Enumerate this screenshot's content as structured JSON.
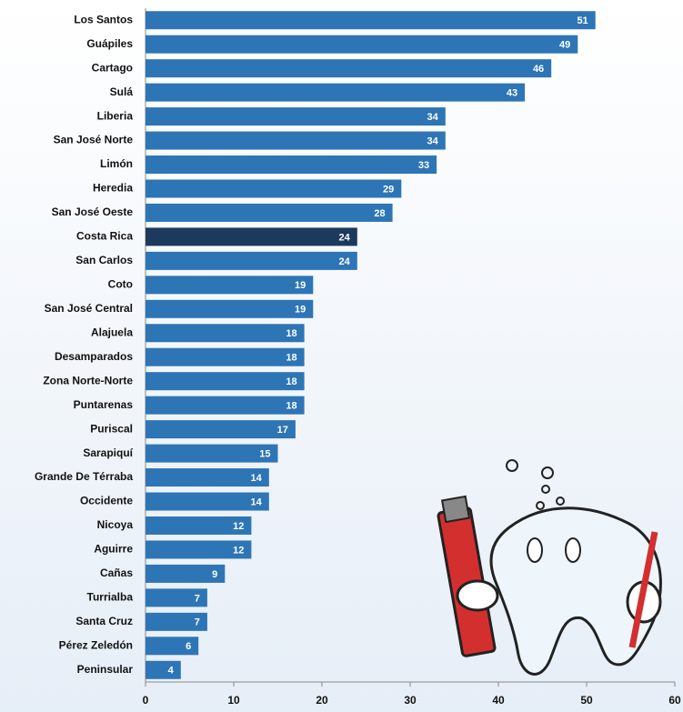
{
  "chart_data": {
    "type": "bar",
    "orientation": "horizontal",
    "categories": [
      "Los Santos",
      "Guápiles",
      "Cartago",
      "Sulá",
      "Liberia",
      "San José Norte",
      "Limón",
      "Heredia",
      "San José Oeste",
      "Costa Rica",
      "San Carlos",
      "Coto",
      "San José Central",
      "Alajuela",
      "Desamparados",
      "Zona Norte-Norte",
      "Puntarenas",
      "Puriscal",
      "Sarapiquí",
      "Grande De Térraba",
      "Occidente",
      "Nicoya",
      "Aguirre",
      "Cañas",
      "Turrialba",
      "Santa Cruz",
      "Pérez Zeledón",
      "Peninsular"
    ],
    "values": [
      51,
      49,
      46,
      43,
      34,
      34,
      33,
      29,
      28,
      24,
      24,
      19,
      19,
      18,
      18,
      18,
      18,
      17,
      15,
      14,
      14,
      12,
      12,
      9,
      7,
      7,
      6,
      4
    ],
    "colors": [
      "#2e75b6",
      "#2e75b6",
      "#2e75b6",
      "#2e75b6",
      "#2e75b6",
      "#2e75b6",
      "#2e75b6",
      "#2e75b6",
      "#2e75b6",
      "#1c3a5e",
      "#2e75b6",
      "#2e75b6",
      "#2e75b6",
      "#2e75b6",
      "#2e75b6",
      "#2e75b6",
      "#2e75b6",
      "#2e75b6",
      "#2e75b6",
      "#2e75b6",
      "#2e75b6",
      "#2e75b6",
      "#2e75b6",
      "#2e75b6",
      "#2e75b6",
      "#2e75b6",
      "#2e75b6",
      "#2e75b6"
    ],
    "xlim": [
      0,
      60
    ],
    "xticks": [
      0,
      10,
      20,
      30,
      40,
      50,
      60
    ],
    "grid": false
  }
}
